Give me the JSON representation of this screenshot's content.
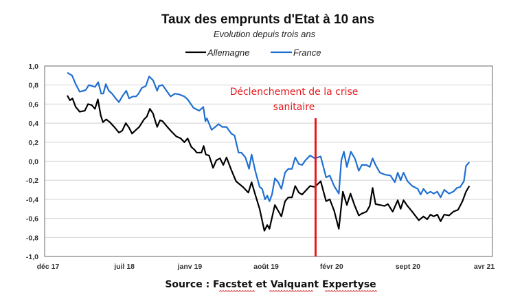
{
  "chart_data": {
    "type": "line",
    "title": "Taux des emprunts d'Etat à 10 ans",
    "subtitle": "Evolution depuis trois ans",
    "xlabel": "",
    "ylabel": "",
    "ylim": [
      -1.0,
      1.0
    ],
    "yticks": [
      "1,0",
      "0,8",
      "0,6",
      "0,4",
      "0,2",
      "0,0",
      "-0,2",
      "-0,4",
      "-0,6",
      "-0,8",
      "-1,0"
    ],
    "ytick_values": [
      1.0,
      0.8,
      0.6,
      0.4,
      0.2,
      0.0,
      -0.2,
      -0.4,
      -0.6,
      -0.8,
      -1.0
    ],
    "xticks": [
      "déc 17",
      "juil 18",
      "janv 19",
      "août 19",
      "févr 20",
      "sept 20",
      "avr 21"
    ],
    "xtick_dates": [
      "2017-12-01",
      "2018-07-01",
      "2019-01-01",
      "2019-08-01",
      "2020-02-01",
      "2020-09-01",
      "2021-04-01"
    ],
    "grid": true,
    "legend_position": "top-center",
    "series": [
      {
        "name": "Allemagne",
        "color": "#000000",
        "points": [
          [
            "2018-01-24",
            0.69
          ],
          [
            "2018-01-31",
            0.64
          ],
          [
            "2018-02-08",
            0.66
          ],
          [
            "2018-02-17",
            0.57
          ],
          [
            "2018-02-28",
            0.52
          ],
          [
            "2018-03-12",
            0.53
          ],
          [
            "2018-03-21",
            0.6
          ],
          [
            "2018-03-31",
            0.59
          ],
          [
            "2018-04-10",
            0.55
          ],
          [
            "2018-04-18",
            0.65
          ],
          [
            "2018-04-26",
            0.48
          ],
          [
            "2018-05-02",
            0.41
          ],
          [
            "2018-05-11",
            0.44
          ],
          [
            "2018-05-21",
            0.41
          ],
          [
            "2018-06-03",
            0.36
          ],
          [
            "2018-06-16",
            0.3
          ],
          [
            "2018-06-25",
            0.32
          ],
          [
            "2018-07-05",
            0.4
          ],
          [
            "2018-07-14",
            0.35
          ],
          [
            "2018-07-22",
            0.29
          ],
          [
            "2018-08-03",
            0.33
          ],
          [
            "2018-08-12",
            0.36
          ],
          [
            "2018-08-25",
            0.44
          ],
          [
            "2018-09-03",
            0.47
          ],
          [
            "2018-09-11",
            0.55
          ],
          [
            "2018-09-20",
            0.5
          ],
          [
            "2018-09-27",
            0.41
          ],
          [
            "2018-10-01",
            0.36
          ],
          [
            "2018-10-09",
            0.43
          ],
          [
            "2018-10-16",
            0.42
          ],
          [
            "2018-10-29",
            0.36
          ],
          [
            "2018-11-11",
            0.31
          ],
          [
            "2018-11-24",
            0.26
          ],
          [
            "2018-12-06",
            0.24
          ],
          [
            "2018-12-16",
            0.2
          ],
          [
            "2018-12-25",
            0.24
          ],
          [
            "2019-01-05",
            0.15
          ],
          [
            "2019-01-14",
            0.12
          ],
          [
            "2019-01-20",
            0.09
          ],
          [
            "2019-02-03",
            0.09
          ],
          [
            "2019-02-09",
            0.16
          ],
          [
            "2019-02-15",
            0.07
          ],
          [
            "2019-02-24",
            0.06
          ],
          [
            "2019-03-05",
            -0.07
          ],
          [
            "2019-03-14",
            0.01
          ],
          [
            "2019-03-24",
            0.03
          ],
          [
            "2019-04-03",
            -0.04
          ],
          [
            "2019-04-12",
            0.04
          ],
          [
            "2019-04-25",
            -0.09
          ],
          [
            "2019-05-08",
            -0.21
          ],
          [
            "2019-05-27",
            -0.27
          ],
          [
            "2019-06-12",
            -0.33
          ],
          [
            "2019-06-21",
            -0.22
          ],
          [
            "2019-07-01",
            -0.35
          ],
          [
            "2019-07-13",
            -0.5
          ],
          [
            "2019-07-26",
            -0.73
          ],
          [
            "2019-08-04",
            -0.67
          ],
          [
            "2019-08-10",
            -0.71
          ],
          [
            "2019-08-25",
            -0.46
          ],
          [
            "2019-09-04",
            -0.52
          ],
          [
            "2019-09-13",
            -0.58
          ],
          [
            "2019-09-23",
            -0.42
          ],
          [
            "2019-10-02",
            -0.38
          ],
          [
            "2019-10-12",
            -0.38
          ],
          [
            "2019-10-21",
            -0.26
          ],
          [
            "2019-10-31",
            -0.33
          ],
          [
            "2019-11-10",
            -0.35
          ],
          [
            "2019-11-22",
            -0.3
          ],
          [
            "2019-12-02",
            -0.26
          ],
          [
            "2019-12-15",
            -0.27
          ],
          [
            "2019-12-31",
            -0.21
          ],
          [
            "2020-01-16",
            -0.42
          ],
          [
            "2020-01-26",
            -0.4
          ],
          [
            "2020-02-08",
            -0.52
          ],
          [
            "2020-02-21",
            -0.71
          ],
          [
            "2020-03-02",
            -0.32
          ],
          [
            "2020-03-13",
            -0.46
          ],
          [
            "2020-03-23",
            -0.34
          ],
          [
            "2020-04-05",
            -0.47
          ],
          [
            "2020-04-16",
            -0.57
          ],
          [
            "2020-04-24",
            -0.55
          ],
          [
            "2020-05-07",
            -0.53
          ],
          [
            "2020-05-16",
            -0.47
          ],
          [
            "2020-05-24",
            -0.28
          ],
          [
            "2020-06-02",
            -0.45
          ],
          [
            "2020-06-14",
            -0.46
          ],
          [
            "2020-06-27",
            -0.47
          ],
          [
            "2020-07-06",
            -0.45
          ],
          [
            "2020-07-19",
            -0.53
          ],
          [
            "2020-08-03",
            -0.41
          ],
          [
            "2020-08-11",
            -0.5
          ],
          [
            "2020-08-19",
            -0.41
          ],
          [
            "2020-08-30",
            -0.47
          ],
          [
            "2020-09-13",
            -0.53
          ],
          [
            "2020-10-01",
            -0.62
          ],
          [
            "2020-10-14",
            -0.58
          ],
          [
            "2020-10-24",
            -0.61
          ],
          [
            "2020-11-03",
            -0.56
          ],
          [
            "2020-11-12",
            -0.58
          ],
          [
            "2020-11-22",
            -0.56
          ],
          [
            "2020-12-01",
            -0.63
          ],
          [
            "2020-12-11",
            -0.56
          ],
          [
            "2020-12-24",
            -0.57
          ],
          [
            "2021-01-06",
            -0.53
          ],
          [
            "2021-01-19",
            -0.51
          ],
          [
            "2021-02-01",
            -0.42
          ],
          [
            "2021-02-11",
            -0.32
          ],
          [
            "2021-02-20",
            -0.26
          ]
        ]
      },
      {
        "name": "France",
        "color": "#1f6fd1",
        "points": [
          [
            "2018-01-24",
            0.93
          ],
          [
            "2018-02-07",
            0.9
          ],
          [
            "2018-02-17",
            0.81
          ],
          [
            "2018-02-28",
            0.73
          ],
          [
            "2018-03-09",
            0.74
          ],
          [
            "2018-03-15",
            0.75
          ],
          [
            "2018-03-23",
            0.8
          ],
          [
            "2018-04-02",
            0.79
          ],
          [
            "2018-04-10",
            0.78
          ],
          [
            "2018-04-19",
            0.83
          ],
          [
            "2018-04-27",
            0.71
          ],
          [
            "2018-05-03",
            0.71
          ],
          [
            "2018-05-10",
            0.81
          ],
          [
            "2018-05-18",
            0.74
          ],
          [
            "2018-05-27",
            0.71
          ],
          [
            "2018-06-07",
            0.66
          ],
          [
            "2018-06-16",
            0.62
          ],
          [
            "2018-06-25",
            0.68
          ],
          [
            "2018-07-06",
            0.74
          ],
          [
            "2018-07-14",
            0.66
          ],
          [
            "2018-07-24",
            0.68
          ],
          [
            "2018-08-03",
            0.68
          ],
          [
            "2018-08-10",
            0.71
          ],
          [
            "2018-08-19",
            0.77
          ],
          [
            "2018-08-30",
            0.79
          ],
          [
            "2018-09-09",
            0.89
          ],
          [
            "2018-09-20",
            0.85
          ],
          [
            "2018-10-01",
            0.74
          ],
          [
            "2018-10-06",
            0.79
          ],
          [
            "2018-10-16",
            0.8
          ],
          [
            "2018-10-25",
            0.75
          ],
          [
            "2018-11-08",
            0.68
          ],
          [
            "2018-11-20",
            0.71
          ],
          [
            "2018-12-03",
            0.7
          ],
          [
            "2018-12-16",
            0.68
          ],
          [
            "2018-12-25",
            0.65
          ],
          [
            "2019-01-11",
            0.56
          ],
          [
            "2019-01-27",
            0.53
          ],
          [
            "2019-02-08",
            0.57
          ],
          [
            "2019-02-14",
            0.42
          ],
          [
            "2019-02-18",
            0.45
          ],
          [
            "2019-03-01",
            0.33
          ],
          [
            "2019-03-11",
            0.36
          ],
          [
            "2019-03-20",
            0.39
          ],
          [
            "2019-03-30",
            0.36
          ],
          [
            "2019-04-12",
            0.36
          ],
          [
            "2019-04-25",
            0.29
          ],
          [
            "2019-05-04",
            0.27
          ],
          [
            "2019-05-15",
            0.09
          ],
          [
            "2019-05-23",
            0.09
          ],
          [
            "2019-06-04",
            0.04
          ],
          [
            "2019-06-14",
            -0.08
          ],
          [
            "2019-06-21",
            0.07
          ],
          [
            "2019-07-01",
            -0.1
          ],
          [
            "2019-07-13",
            -0.27
          ],
          [
            "2019-07-20",
            -0.29
          ],
          [
            "2019-07-28",
            -0.4
          ],
          [
            "2019-08-04",
            -0.36
          ],
          [
            "2019-08-10",
            -0.42
          ],
          [
            "2019-08-17",
            -0.35
          ],
          [
            "2019-08-25",
            -0.18
          ],
          [
            "2019-09-04",
            -0.22
          ],
          [
            "2019-09-13",
            -0.29
          ],
          [
            "2019-09-23",
            -0.12
          ],
          [
            "2019-10-02",
            -0.08
          ],
          [
            "2019-10-12",
            -0.08
          ],
          [
            "2019-10-21",
            0.04
          ],
          [
            "2019-10-31",
            -0.03
          ],
          [
            "2019-11-10",
            -0.04
          ],
          [
            "2019-11-19",
            0.01
          ],
          [
            "2019-12-02",
            0.06
          ],
          [
            "2019-12-15",
            0.03
          ],
          [
            "2019-12-31",
            0.05
          ],
          [
            "2020-01-16",
            -0.17
          ],
          [
            "2020-01-26",
            -0.15
          ],
          [
            "2020-02-08",
            -0.26
          ],
          [
            "2020-02-21",
            -0.34
          ],
          [
            "2020-02-28",
            0.01
          ],
          [
            "2020-03-05",
            0.1
          ],
          [
            "2020-03-13",
            -0.06
          ],
          [
            "2020-03-24",
            0.1
          ],
          [
            "2020-04-05",
            0.03
          ],
          [
            "2020-04-16",
            -0.1
          ],
          [
            "2020-04-24",
            -0.04
          ],
          [
            "2020-05-07",
            -0.04
          ],
          [
            "2020-05-16",
            -0.06
          ],
          [
            "2020-05-24",
            0.03
          ],
          [
            "2020-06-02",
            -0.04
          ],
          [
            "2020-06-14",
            -0.12
          ],
          [
            "2020-06-27",
            -0.14
          ],
          [
            "2020-07-13",
            -0.15
          ],
          [
            "2020-07-25",
            -0.22
          ],
          [
            "2020-08-03",
            -0.12
          ],
          [
            "2020-08-11",
            -0.2
          ],
          [
            "2020-08-19",
            -0.12
          ],
          [
            "2020-08-30",
            -0.21
          ],
          [
            "2020-09-13",
            -0.26
          ],
          [
            "2020-09-28",
            -0.29
          ],
          [
            "2020-10-06",
            -0.35
          ],
          [
            "2020-10-14",
            -0.29
          ],
          [
            "2020-10-24",
            -0.34
          ],
          [
            "2020-11-03",
            -0.32
          ],
          [
            "2020-11-12",
            -0.34
          ],
          [
            "2020-11-22",
            -0.32
          ],
          [
            "2020-12-01",
            -0.38
          ],
          [
            "2020-12-11",
            -0.3
          ],
          [
            "2020-12-24",
            -0.34
          ],
          [
            "2021-01-06",
            -0.32
          ],
          [
            "2021-01-16",
            -0.28
          ],
          [
            "2021-01-25",
            -0.27
          ],
          [
            "2021-02-05",
            -0.21
          ],
          [
            "2021-02-11",
            -0.05
          ],
          [
            "2021-02-20",
            -0.01
          ]
        ]
      }
    ],
    "annotation": {
      "lines": [
        "Déclenchement de la crise",
        "sanitaire"
      ],
      "marker_date": "2019-12-17",
      "color": "#e8191d"
    }
  },
  "source": {
    "prefix": "Source : ",
    "words": [
      "Facstet",
      "et",
      "Valquant",
      "Expertyse"
    ],
    "spellcheck_underlined": [
      "Facstet",
      "Valquant",
      "Expertyse"
    ]
  }
}
